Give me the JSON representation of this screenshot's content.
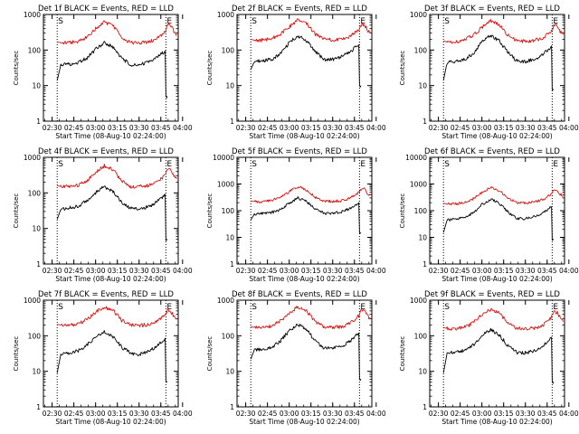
{
  "colors": {
    "events": "#000000",
    "lld": "#dd1111",
    "axis": "#000000",
    "marker": "#000000"
  },
  "chart_data": [
    {
      "type": "line",
      "title": "Det 1f BLACK = Events, RED = LLD",
      "xlabel": "Start Time (08-Aug-10 02:24:00)",
      "ylabel": "Counts/sec",
      "yscale": "log",
      "xlim": [
        0,
        93
      ],
      "ylim": [
        1,
        1000
      ],
      "xticks": [
        "02:30",
        "02:45",
        "03:00",
        "03:15",
        "03:30",
        "03:45",
        "04:00"
      ],
      "yticks": [
        "1",
        "10",
        "100",
        "1000"
      ],
      "markers": [
        {
          "x": 9.5,
          "label": "S"
        },
        {
          "x": 84.5,
          "label": "E"
        }
      ],
      "series": [
        {
          "name": "Events",
          "x": [
            9.5,
            12,
            18,
            24,
            30,
            36,
            42,
            48,
            54,
            60,
            66,
            72,
            78,
            84,
            84.5,
            85.5
          ],
          "y": [
            14,
            38,
            40,
            45,
            60,
            105,
            160,
            120,
            60,
            38,
            38,
            45,
            60,
            95,
            5,
            5
          ]
        },
        {
          "name": "LLD",
          "x": [
            9.5,
            12,
            18,
            24,
            30,
            36,
            42,
            48,
            54,
            60,
            66,
            72,
            78,
            84,
            86,
            88,
            90,
            92
          ],
          "y": [
            170,
            160,
            160,
            175,
            230,
            400,
            620,
            480,
            230,
            160,
            160,
            165,
            200,
            330,
            520,
            480,
            330,
            270
          ]
        }
      ]
    },
    {
      "type": "line",
      "title": "Det 2f BLACK = Events, RED = LLD",
      "xlabel": "Start Time (08-Aug-10 02:24:00)",
      "ylabel": "Counts/sec",
      "yscale": "log",
      "xlim": [
        0,
        93
      ],
      "ylim": [
        1,
        1000
      ],
      "xticks": [
        "02:30",
        "02:45",
        "03:00",
        "03:15",
        "03:30",
        "03:45",
        "04:00"
      ],
      "yticks": [
        "1",
        "10",
        "100",
        "1000"
      ],
      "markers": [
        {
          "x": 9.5,
          "label": "S"
        },
        {
          "x": 84.5,
          "label": "E"
        }
      ],
      "series": [
        {
          "name": "Events",
          "x": [
            9.5,
            12,
            18,
            24,
            30,
            36,
            42,
            48,
            54,
            60,
            66,
            72,
            78,
            84,
            84.5,
            85.5
          ],
          "y": [
            28,
            48,
            50,
            55,
            80,
            160,
            250,
            180,
            90,
            55,
            55,
            65,
            90,
            140,
            10,
            10
          ]
        },
        {
          "name": "LLD",
          "x": [
            9.5,
            12,
            18,
            24,
            30,
            36,
            42,
            48,
            54,
            60,
            66,
            72,
            78,
            84,
            86,
            88,
            90,
            92
          ],
          "y": [
            200,
            190,
            190,
            210,
            280,
            450,
            700,
            560,
            280,
            200,
            190,
            200,
            240,
            380,
            560,
            500,
            360,
            300
          ]
        }
      ]
    },
    {
      "type": "line",
      "title": "Det 3f BLACK = Events, RED = LLD",
      "xlabel": "Start Time (08-Aug-10 02:24:00)",
      "ylabel": "Counts/sec",
      "yscale": "log",
      "xlim": [
        0,
        93
      ],
      "ylim": [
        1,
        1000
      ],
      "xticks": [
        "02:30",
        "02:45",
        "03:00",
        "03:15",
        "03:30",
        "03:45",
        "04:00"
      ],
      "yticks": [
        "1",
        "10",
        "100",
        "1000"
      ],
      "markers": [
        {
          "x": 9.5,
          "label": "S"
        },
        {
          "x": 84.5,
          "label": "E"
        }
      ],
      "series": [
        {
          "name": "Events",
          "x": [
            9.5,
            12,
            18,
            24,
            30,
            36,
            42,
            48,
            54,
            60,
            66,
            72,
            78,
            84,
            84.5,
            85.5
          ],
          "y": [
            14,
            45,
            48,
            55,
            80,
            170,
            260,
            180,
            85,
            50,
            48,
            55,
            75,
            130,
            8,
            8
          ]
        },
        {
          "name": "LLD",
          "x": [
            9.5,
            12,
            18,
            24,
            30,
            36,
            42,
            48,
            54,
            60,
            66,
            72,
            78,
            84,
            86,
            88,
            90,
            92
          ],
          "y": [
            180,
            170,
            170,
            190,
            260,
            430,
            650,
            520,
            260,
            180,
            175,
            185,
            220,
            340,
            520,
            480,
            330,
            270
          ]
        }
      ]
    },
    {
      "type": "line",
      "title": "Det 4f BLACK = Events, RED = LLD",
      "xlabel": "Start Time (08-Aug-10 02:24:00)",
      "ylabel": "Counts/sec",
      "yscale": "log",
      "xlim": [
        0,
        93
      ],
      "ylim": [
        1,
        1000
      ],
      "xticks": [
        "02:30",
        "02:45",
        "03:00",
        "03:15",
        "03:30",
        "03:45",
        "04:00"
      ],
      "yticks": [
        "1",
        "10",
        "100",
        "1000"
      ],
      "markers": [
        {
          "x": 9.5,
          "label": "S"
        },
        {
          "x": 84.5,
          "label": "E"
        }
      ],
      "series": [
        {
          "name": "Events",
          "x": [
            9.5,
            12,
            18,
            24,
            30,
            36,
            42,
            48,
            54,
            60,
            66,
            72,
            78,
            84,
            84.5,
            85.5
          ],
          "y": [
            18,
            35,
            38,
            42,
            60,
            100,
            150,
            110,
            55,
            36,
            35,
            40,
            55,
            90,
            5,
            5
          ]
        },
        {
          "name": "LLD",
          "x": [
            9.5,
            12,
            18,
            24,
            30,
            36,
            42,
            48,
            54,
            60,
            66,
            72,
            78,
            84,
            86,
            88,
            90,
            92
          ],
          "y": [
            160,
            150,
            150,
            165,
            220,
            380,
            580,
            450,
            220,
            150,
            150,
            160,
            190,
            320,
            480,
            440,
            310,
            250
          ]
        }
      ]
    },
    {
      "type": "line",
      "title": "Det 5f BLACK = Events, RED = LLD",
      "xlabel": "Start Time (08-Aug-10 02:24:00)",
      "ylabel": "Counts/sec",
      "yscale": "log",
      "xlim": [
        0,
        93
      ],
      "ylim": [
        1,
        10000
      ],
      "xticks": [
        "02:30",
        "02:45",
        "03:00",
        "03:15",
        "03:30",
        "03:45",
        "04:00"
      ],
      "yticks": [
        "1",
        "10",
        "100",
        "1000",
        "10000"
      ],
      "markers": [
        {
          "x": 9.5,
          "label": "S"
        },
        {
          "x": 84.5,
          "label": "E"
        }
      ],
      "series": [
        {
          "name": "Events",
          "x": [
            9.5,
            12,
            18,
            24,
            30,
            36,
            42,
            48,
            54,
            60,
            66,
            72,
            78,
            84,
            84.5,
            85.5
          ],
          "y": [
            45,
            75,
            78,
            85,
            110,
            190,
            300,
            220,
            120,
            80,
            80,
            90,
            120,
            200,
            15,
            15
          ]
        },
        {
          "name": "LLD",
          "x": [
            9.5,
            12,
            18,
            24,
            30,
            36,
            42,
            48,
            54,
            60,
            66,
            72,
            78,
            84,
            86,
            88,
            90,
            92
          ],
          "y": [
            230,
            220,
            220,
            240,
            320,
            520,
            800,
            600,
            320,
            230,
            225,
            235,
            290,
            480,
            700,
            620,
            450,
            380
          ]
        }
      ]
    },
    {
      "type": "line",
      "title": "Det 6f BLACK = Events, RED = LLD",
      "xlabel": "Start Time (08-Aug-10 02:24:00)",
      "ylabel": "Counts/sec",
      "yscale": "log",
      "xlim": [
        0,
        93
      ],
      "ylim": [
        1,
        10000
      ],
      "xticks": [
        "02:30",
        "02:45",
        "03:00",
        "03:15",
        "03:30",
        "03:45",
        "04:00"
      ],
      "yticks": [
        "1",
        "10",
        "100",
        "1000",
        "10000"
      ],
      "markers": [
        {
          "x": 9.5,
          "label": "S"
        },
        {
          "x": 84.5,
          "label": "E"
        }
      ],
      "series": [
        {
          "name": "Events",
          "x": [
            9.5,
            12,
            18,
            24,
            30,
            36,
            42,
            48,
            54,
            60,
            66,
            72,
            78,
            84,
            84.5,
            85.5
          ],
          "y": [
            15,
            45,
            48,
            55,
            80,
            170,
            270,
            190,
            90,
            52,
            50,
            60,
            80,
            140,
            8,
            8
          ]
        },
        {
          "name": "LLD",
          "x": [
            9.5,
            12,
            18,
            24,
            30,
            36,
            42,
            48,
            54,
            60,
            66,
            72,
            78,
            84,
            86,
            88,
            90,
            92
          ],
          "y": [
            190,
            180,
            180,
            200,
            280,
            480,
            750,
            580,
            290,
            200,
            195,
            210,
            260,
            420,
            650,
            580,
            420,
            350
          ]
        }
      ]
    },
    {
      "type": "line",
      "title": "Det 7f BLACK = Events, RED = LLD",
      "xlabel": "Start Time (08-Aug-10 02:24:00)",
      "ylabel": "Counts/sec",
      "yscale": "log",
      "xlim": [
        0,
        93
      ],
      "ylim": [
        1,
        1000
      ],
      "xticks": [
        "02:30",
        "02:45",
        "03:00",
        "03:15",
        "03:30",
        "03:45",
        "04:00"
      ],
      "yticks": [
        "1",
        "10",
        "100",
        "1000"
      ],
      "markers": [
        {
          "x": 9.5,
          "label": "S"
        },
        {
          "x": 84.5,
          "label": "E"
        }
      ],
      "series": [
        {
          "name": "Events",
          "x": [
            9.5,
            12,
            18,
            24,
            30,
            36,
            42,
            48,
            54,
            60,
            66,
            72,
            78,
            84,
            84.5,
            85.5
          ],
          "y": [
            9,
            30,
            33,
            38,
            55,
            90,
            130,
            95,
            48,
            32,
            30,
            36,
            50,
            85,
            5,
            5
          ]
        },
        {
          "name": "LLD",
          "x": [
            9.5,
            12,
            18,
            24,
            30,
            36,
            42,
            48,
            54,
            60,
            66,
            72,
            78,
            84,
            86,
            88,
            90,
            92
          ],
          "y": [
            210,
            200,
            200,
            215,
            280,
            460,
            650,
            520,
            270,
            200,
            195,
            205,
            240,
            380,
            520,
            480,
            350,
            290
          ]
        }
      ]
    },
    {
      "type": "line",
      "title": "Det 8f BLACK = Events, RED = LLD",
      "xlabel": "Start Time (08-Aug-10 02:24:00)",
      "ylabel": "Counts/sec",
      "yscale": "log",
      "xlim": [
        0,
        93
      ],
      "ylim": [
        1,
        1000
      ],
      "xticks": [
        "02:30",
        "02:45",
        "03:00",
        "03:15",
        "03:30",
        "03:45",
        "04:00"
      ],
      "yticks": [
        "1",
        "10",
        "100",
        "1000"
      ],
      "markers": [
        {
          "x": 9.5,
          "label": "S"
        },
        {
          "x": 84.5,
          "label": "E"
        }
      ],
      "series": [
        {
          "name": "Events",
          "x": [
            9.5,
            12,
            18,
            24,
            30,
            36,
            42,
            48,
            54,
            60,
            66,
            72,
            78,
            84,
            84.5,
            85.5
          ],
          "y": [
            22,
            40,
            42,
            48,
            70,
            140,
            210,
            150,
            72,
            45,
            44,
            50,
            70,
            120,
            6,
            6
          ]
        },
        {
          "name": "LLD",
          "x": [
            9.5,
            12,
            18,
            24,
            30,
            36,
            42,
            48,
            54,
            60,
            66,
            72,
            78,
            84,
            86,
            88,
            90,
            92
          ],
          "y": [
            180,
            170,
            170,
            190,
            260,
            440,
            650,
            500,
            250,
            175,
            170,
            180,
            220,
            360,
            540,
            490,
            350,
            290
          ]
        }
      ]
    },
    {
      "type": "line",
      "title": "Det 9f BLACK = Events, RED = LLD",
      "xlabel": "Start Time (08-Aug-10 02:24:00)",
      "ylabel": "Counts/sec",
      "yscale": "log",
      "xlim": [
        0,
        93
      ],
      "ylim": [
        1,
        1000
      ],
      "xticks": [
        "02:30",
        "02:45",
        "03:00",
        "03:15",
        "03:30",
        "03:45",
        "04:00"
      ],
      "yticks": [
        "1",
        "10",
        "100",
        "1000"
      ],
      "markers": [
        {
          "x": 9.5,
          "label": "S"
        },
        {
          "x": 84.5,
          "label": "E"
        }
      ],
      "series": [
        {
          "name": "Events",
          "x": [
            9.5,
            12,
            18,
            24,
            30,
            36,
            42,
            48,
            54,
            60,
            66,
            72,
            78,
            84,
            84.5,
            85.5
          ],
          "y": [
            9,
            32,
            34,
            40,
            55,
            100,
            150,
            105,
            52,
            34,
            33,
            38,
            52,
            90,
            5,
            5
          ]
        },
        {
          "name": "LLD",
          "x": [
            9.5,
            12,
            18,
            24,
            30,
            36,
            42,
            48,
            54,
            60,
            66,
            72,
            78,
            84,
            86,
            88,
            90,
            92
          ],
          "y": [
            170,
            160,
            160,
            175,
            230,
            390,
            560,
            440,
            220,
            160,
            155,
            165,
            195,
            320,
            480,
            440,
            310,
            250
          ]
        }
      ]
    }
  ]
}
